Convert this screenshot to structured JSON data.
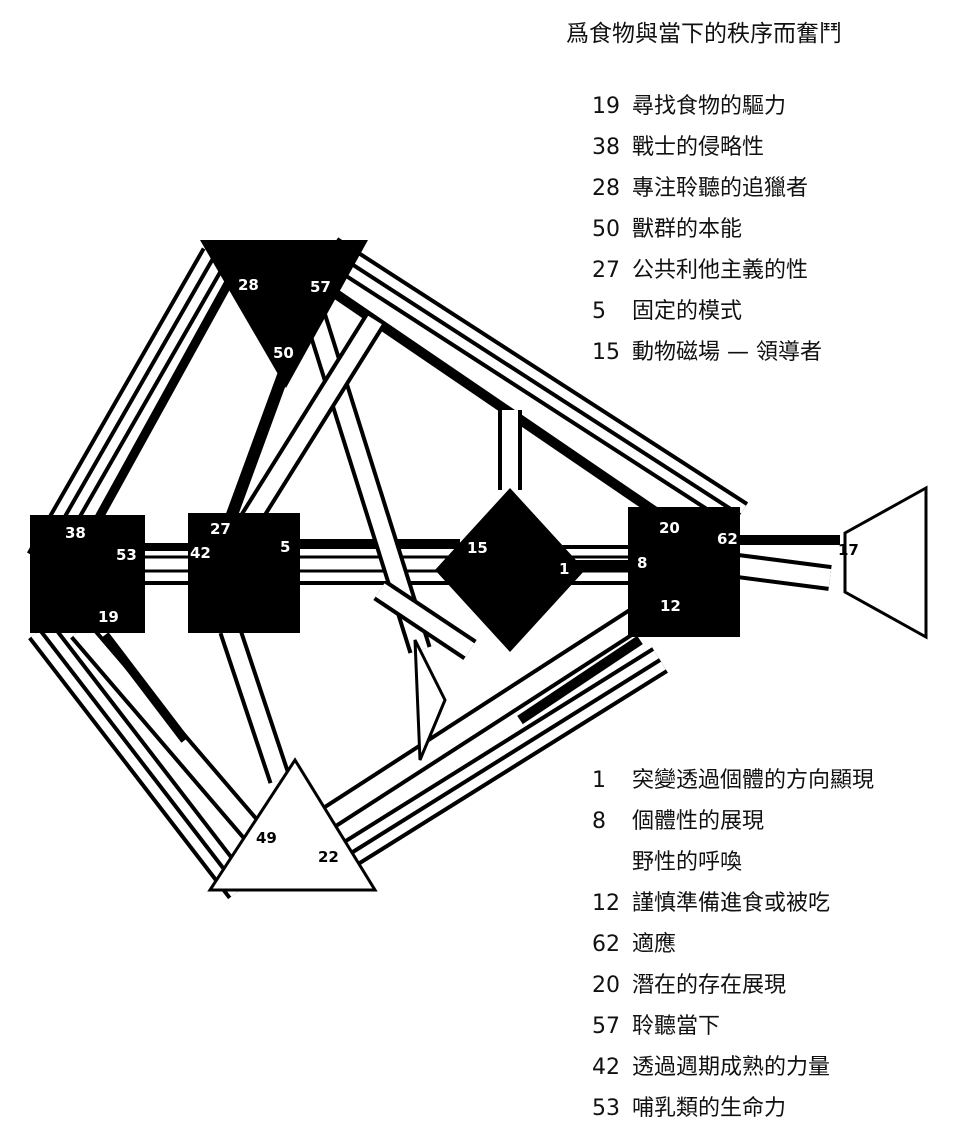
{
  "title": "爲食物與當下的秩序而奮鬥",
  "gates_top": [
    {
      "num": "19",
      "text": "尋找食物的驅力"
    },
    {
      "num": "38",
      "text": "戰士的侵略性"
    },
    {
      "num": "28",
      "text": "專注聆聽的追獵者"
    },
    {
      "num": "50",
      "text": "獸群的本能"
    },
    {
      "num": "27",
      "text": "公共利他主義的性"
    },
    {
      "num": "5",
      "text": "固定的模式"
    },
    {
      "num": "15",
      "text": "動物磁場 — 領導者"
    }
  ],
  "gates_bottom": [
    {
      "num": "1",
      "text": "突變透過個體的方向顯現"
    },
    {
      "num": "8",
      "text": "個體性的展現"
    },
    {
      "num": "",
      "text": "野性的呼喚"
    },
    {
      "num": "12",
      "text": "謹慎準備進食或被吃"
    },
    {
      "num": "62",
      "text": "適應"
    },
    {
      "num": "20",
      "text": "潛在的存在展現"
    },
    {
      "num": "57",
      "text": "聆聽當下"
    },
    {
      "num": "42",
      "text": "透過週期成熟的力量"
    },
    {
      "num": "53",
      "text": "哺乳類的生命力"
    }
  ],
  "diagram_labels": {
    "g38": "38",
    "g53": "53",
    "g19": "19",
    "g27": "27",
    "g42": "42",
    "g5": "5",
    "g28": "28",
    "g57": "57",
    "g50": "50",
    "g15": "15",
    "g1": "1",
    "g20": "20",
    "g62": "62",
    "g8": "8",
    "g12": "12",
    "g17": "17",
    "g49": "49",
    "g22": "22"
  },
  "colors": {
    "ink": "#000000",
    "paper": "#ffffff"
  }
}
